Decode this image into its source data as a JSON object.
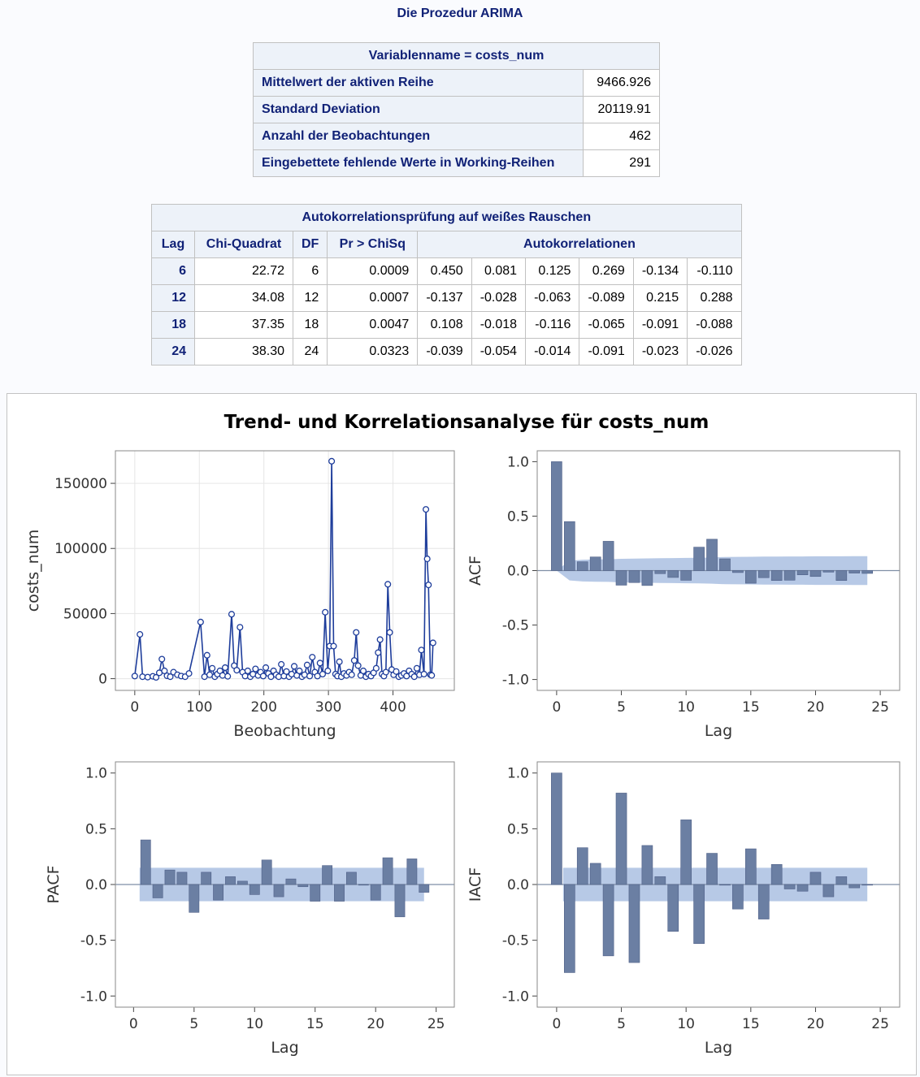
{
  "header": {
    "title": "Die Prozedur ARIMA"
  },
  "summary_table": {
    "title": "Variablenname = costs_num",
    "rows": [
      {
        "label": "Mittelwert der aktiven Reihe",
        "value": "9466.926"
      },
      {
        "label": "Standard Deviation",
        "value": "20119.91"
      },
      {
        "label": "Anzahl der Beobachtungen",
        "value": "462"
      },
      {
        "label": "Eingebettete fehlende Werte in Working-Reihen",
        "value": "291"
      }
    ]
  },
  "whitenoise_table": {
    "title": "Autokorrelationsprüfung auf weißes Rauschen",
    "columns": [
      "Lag",
      "Chi-Quadrat",
      "DF",
      "Pr > ChiSq",
      "Autokorrelationen"
    ],
    "rows": [
      {
        "lag": "6",
        "chisq": "22.72",
        "df": "6",
        "p": "0.0009",
        "ac": [
          "0.450",
          "0.081",
          "0.125",
          "0.269",
          "-0.134",
          "-0.110"
        ]
      },
      {
        "lag": "12",
        "chisq": "34.08",
        "df": "12",
        "p": "0.0007",
        "ac": [
          "-0.137",
          "-0.028",
          "-0.063",
          "-0.089",
          "0.215",
          "0.288"
        ]
      },
      {
        "lag": "18",
        "chisq": "37.35",
        "df": "18",
        "p": "0.0047",
        "ac": [
          "0.108",
          "-0.018",
          "-0.116",
          "-0.065",
          "-0.091",
          "-0.088"
        ]
      },
      {
        "lag": "24",
        "chisq": "38.30",
        "df": "24",
        "p": "0.0323",
        "ac": [
          "-0.039",
          "-0.054",
          "-0.014",
          "-0.091",
          "-0.023",
          "-0.026"
        ]
      }
    ]
  },
  "colors": {
    "series": "#1e3d9b",
    "bar": "#6b7fa3",
    "band": "#b7c9e6",
    "text": "#112277"
  },
  "chart_data": [
    {
      "type": "line",
      "title": "Trend- und Korrelationsanalyse für costs_num",
      "xlabel": "Beobachtung",
      "ylabel": "costs_num",
      "xlim": [
        -30,
        495
      ],
      "ylim": [
        -9000,
        175000
      ],
      "xticks": [
        0,
        100,
        200,
        300,
        400
      ],
      "yticks": [
        0,
        50000,
        100000,
        150000
      ],
      "grid": true,
      "points": [
        [
          0,
          2000
        ],
        [
          8,
          34000
        ],
        [
          12,
          1500
        ],
        [
          20,
          1200
        ],
        [
          28,
          1800
        ],
        [
          33,
          1000
        ],
        [
          38,
          4500
        ],
        [
          42,
          15000
        ],
        [
          46,
          6000
        ],
        [
          50,
          2200
        ],
        [
          55,
          1500
        ],
        [
          60,
          5000
        ],
        [
          66,
          3000
        ],
        [
          72,
          2000
        ],
        [
          78,
          1500
        ],
        [
          84,
          4000
        ],
        [
          102,
          43500
        ],
        [
          108,
          1500
        ],
        [
          112,
          18000
        ],
        [
          116,
          3000
        ],
        [
          120,
          8000
        ],
        [
          124,
          1500
        ],
        [
          128,
          3500
        ],
        [
          132,
          6000
        ],
        [
          136,
          2500
        ],
        [
          140,
          8500
        ],
        [
          144,
          1800
        ],
        [
          150,
          49500
        ],
        [
          154,
          10000
        ],
        [
          158,
          6500
        ],
        [
          163,
          39500
        ],
        [
          167,
          5000
        ],
        [
          171,
          2000
        ],
        [
          175,
          6000
        ],
        [
          179,
          1500
        ],
        [
          183,
          3500
        ],
        [
          187,
          7500
        ],
        [
          191,
          2500
        ],
        [
          195,
          5000
        ],
        [
          199,
          2000
        ],
        [
          203,
          8500
        ],
        [
          207,
          4000
        ],
        [
          211,
          1500
        ],
        [
          215,
          6000
        ],
        [
          219,
          3000
        ],
        [
          223,
          1500
        ],
        [
          227,
          11000
        ],
        [
          231,
          2000
        ],
        [
          235,
          5500
        ],
        [
          239,
          1500
        ],
        [
          243,
          3500
        ],
        [
          247,
          9500
        ],
        [
          251,
          2500
        ],
        [
          255,
          6000
        ],
        [
          259,
          1500
        ],
        [
          263,
          3000
        ],
        [
          267,
          10500
        ],
        [
          271,
          2000
        ],
        [
          275,
          16500
        ],
        [
          279,
          5000
        ],
        [
          283,
          2000
        ],
        [
          287,
          12000
        ],
        [
          291,
          3500
        ],
        [
          295,
          51000
        ],
        [
          299,
          6000
        ],
        [
          302,
          25000
        ],
        [
          305,
          167000
        ],
        [
          308,
          25000
        ],
        [
          311,
          3500
        ],
        [
          314,
          2000
        ],
        [
          317,
          13000
        ],
        [
          320,
          1500
        ],
        [
          324,
          4000
        ],
        [
          328,
          2500
        ],
        [
          332,
          5000
        ],
        [
          336,
          3000
        ],
        [
          340,
          14000
        ],
        [
          343,
          35500
        ],
        [
          346,
          10000
        ],
        [
          350,
          2500
        ],
        [
          354,
          6000
        ],
        [
          358,
          1500
        ],
        [
          362,
          3500
        ],
        [
          366,
          2000
        ],
        [
          370,
          4500
        ],
        [
          374,
          8000
        ],
        [
          377,
          20000
        ],
        [
          380,
          30000
        ],
        [
          383,
          3500
        ],
        [
          386,
          2000
        ],
        [
          389,
          5000
        ],
        [
          392,
          72500
        ],
        [
          395,
          35500
        ],
        [
          398,
          7000
        ],
        [
          401,
          3000
        ],
        [
          405,
          5500
        ],
        [
          409,
          1500
        ],
        [
          413,
          2500
        ],
        [
          417,
          4000
        ],
        [
          421,
          2000
        ],
        [
          425,
          6000
        ],
        [
          429,
          3500
        ],
        [
          433,
          1500
        ],
        [
          437,
          8000
        ],
        [
          441,
          3000
        ],
        [
          444,
          22000
        ],
        [
          448,
          3500
        ],
        [
          451,
          130000
        ],
        [
          453,
          92000
        ],
        [
          455,
          72000
        ],
        [
          458,
          3000
        ],
        [
          460,
          2500
        ],
        [
          462,
          27500
        ]
      ]
    },
    {
      "type": "bar",
      "ylabel": "ACF",
      "xlabel": "Lag",
      "xlim": [
        -1.5,
        26.5
      ],
      "ylim": [
        -1.1,
        1.1
      ],
      "xticks": [
        0,
        5,
        10,
        15,
        20,
        25
      ],
      "yticks": [
        1.0,
        0.5,
        0.0,
        -0.5,
        -1.0
      ],
      "lags": [
        0,
        1,
        2,
        3,
        4,
        5,
        6,
        7,
        8,
        9,
        10,
        11,
        12,
        13,
        14,
        15,
        16,
        17,
        18,
        19,
        20,
        21,
        22,
        23,
        24
      ],
      "values": [
        1.0,
        0.45,
        0.081,
        0.125,
        0.269,
        -0.134,
        -0.11,
        -0.137,
        -0.028,
        -0.063,
        -0.089,
        0.215,
        0.288,
        0.108,
        -0.018,
        -0.116,
        -0.065,
        -0.091,
        -0.088,
        -0.039,
        -0.054,
        -0.014,
        -0.091,
        -0.023,
        -0.026
      ],
      "band_upper": [
        0.0,
        0.09,
        0.1,
        0.102,
        0.104,
        0.108,
        0.11,
        0.112,
        0.114,
        0.115,
        0.116,
        0.117,
        0.12,
        0.125,
        0.126,
        0.127,
        0.128,
        0.129,
        0.13,
        0.13,
        0.131,
        0.131,
        0.131,
        0.132,
        0.132
      ]
    },
    {
      "type": "bar",
      "ylabel": "PACF",
      "xlabel": "Lag",
      "xlim": [
        -1.5,
        26.5
      ],
      "ylim": [
        -1.1,
        1.1
      ],
      "xticks": [
        0,
        5,
        10,
        15,
        20,
        25
      ],
      "yticks": [
        1.0,
        0.5,
        0.0,
        -0.5,
        -1.0
      ],
      "lags": [
        1,
        2,
        3,
        4,
        5,
        6,
        7,
        8,
        9,
        10,
        11,
        12,
        13,
        14,
        15,
        16,
        17,
        18,
        19,
        20,
        21,
        22,
        23,
        24
      ],
      "values": [
        0.4,
        -0.12,
        0.13,
        0.11,
        -0.25,
        0.11,
        -0.14,
        0.07,
        0.03,
        -0.09,
        0.22,
        -0.11,
        0.05,
        -0.02,
        -0.15,
        0.17,
        -0.15,
        0.11,
        0.0,
        -0.14,
        0.24,
        -0.29,
        0.23,
        -0.07
      ],
      "band": 0.15
    },
    {
      "type": "bar",
      "ylabel": "IACF",
      "xlabel": "Lag",
      "xlim": [
        -1.5,
        26.5
      ],
      "ylim": [
        -1.1,
        1.1
      ],
      "xticks": [
        0,
        5,
        10,
        15,
        20,
        25
      ],
      "yticks": [
        1.0,
        0.5,
        0.0,
        -0.5,
        -1.0
      ],
      "lags": [
        0,
        1,
        2,
        3,
        4,
        5,
        6,
        7,
        8,
        9,
        10,
        11,
        12,
        13,
        14,
        15,
        16,
        17,
        18,
        19,
        20,
        21,
        22,
        23,
        24
      ],
      "values": [
        1.0,
        -0.79,
        0.33,
        0.19,
        -0.64,
        0.82,
        -0.7,
        0.35,
        0.07,
        -0.42,
        0.58,
        -0.53,
        0.28,
        0.0,
        -0.22,
        0.32,
        -0.31,
        0.18,
        -0.04,
        -0.06,
        0.11,
        -0.11,
        0.07,
        -0.03,
        0.0
      ],
      "band": 0.15
    }
  ]
}
